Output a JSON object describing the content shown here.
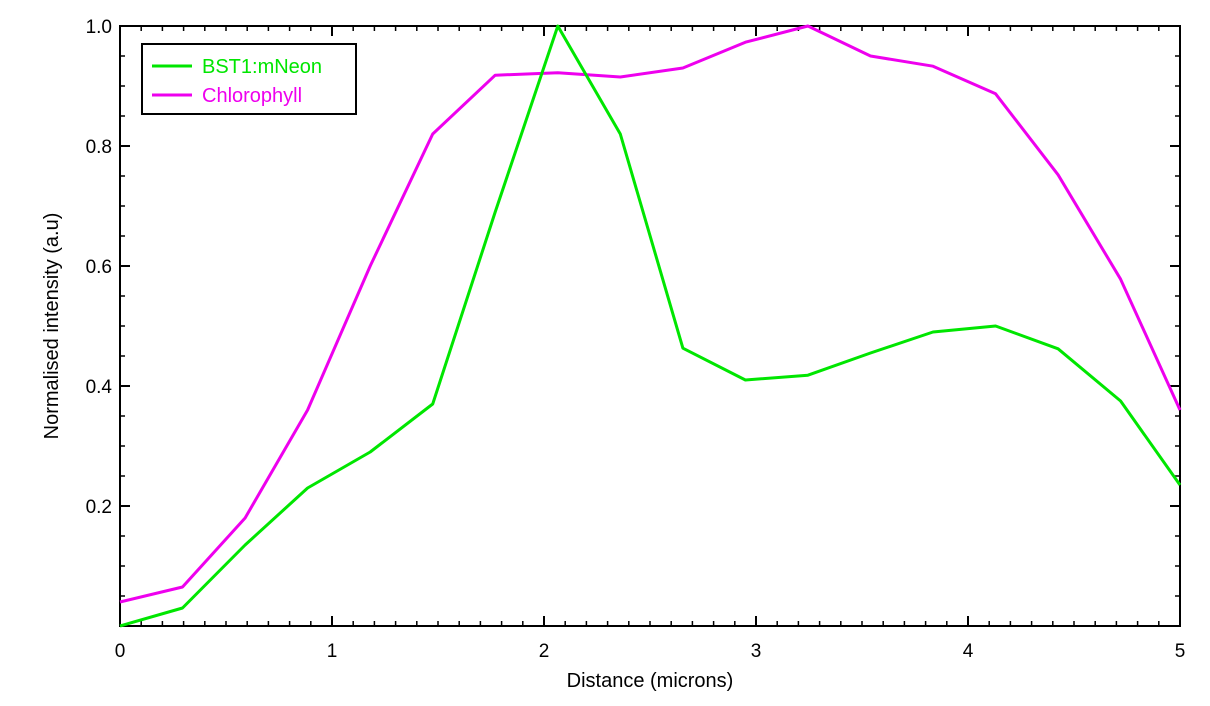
{
  "chart_data": {
    "type": "line",
    "title": "",
    "xlabel": "Distance (microns)",
    "ylabel": "Normalised intensity (a.u)",
    "xlim": [
      0,
      5
    ],
    "ylim": [
      0,
      1.0
    ],
    "xticks": [
      0,
      1,
      2,
      3,
      4,
      5
    ],
    "xtick_labels": [
      "0",
      "1",
      "2",
      "3",
      "4",
      "5"
    ],
    "yticks": [
      0.2,
      0.4,
      0.6,
      0.8,
      1.0
    ],
    "ytick_labels": [
      "0.2",
      "0.4",
      "0.6",
      "0.8",
      "1.0"
    ],
    "grid": false,
    "legend_position": "top-left",
    "series": [
      {
        "name": "BST1:mNeon",
        "color": "#00e600",
        "x": [
          0,
          0.295,
          0.59,
          0.885,
          1.18,
          1.475,
          1.77,
          2.065,
          2.36,
          2.655,
          2.95,
          3.245,
          3.54,
          3.835,
          4.13,
          4.425,
          4.72,
          5.0
        ],
        "y": [
          0.0,
          0.03,
          0.135,
          0.23,
          0.29,
          0.37,
          0.69,
          1.0,
          0.82,
          0.463,
          0.41,
          0.418,
          0.455,
          0.49,
          0.5,
          0.462,
          0.375,
          0.235
        ]
      },
      {
        "name": "Chlorophyll",
        "color": "#ee00ee",
        "x": [
          0,
          0.295,
          0.59,
          0.885,
          1.18,
          1.475,
          1.77,
          2.065,
          2.36,
          2.655,
          2.95,
          3.245,
          3.54,
          3.835,
          4.13,
          4.425,
          4.72,
          5.0
        ],
        "y": [
          0.04,
          0.065,
          0.18,
          0.36,
          0.6,
          0.82,
          0.918,
          0.922,
          0.915,
          0.93,
          0.973,
          1.0,
          0.95,
          0.933,
          0.887,
          0.752,
          0.578,
          0.36
        ]
      }
    ]
  }
}
